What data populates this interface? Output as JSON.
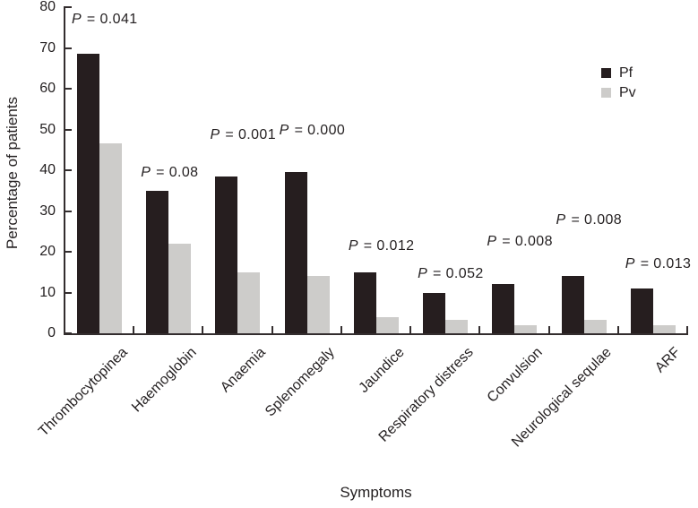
{
  "figure_name": "symptoms-bar-chart",
  "p_prefix": "P",
  "p_equals": " = ",
  "legend": {
    "items": [
      {
        "label": "Pf",
        "color": "#261e1f"
      },
      {
        "label": "Pv",
        "color": "#cdccca"
      }
    ]
  },
  "chart_data": {
    "type": "bar",
    "title": "",
    "xlabel": "Symptoms",
    "ylabel": "Percentage of patients",
    "ylim": [
      0,
      80
    ],
    "y_ticks": [
      0,
      10,
      20,
      30,
      40,
      50,
      60,
      70,
      80
    ],
    "grid": false,
    "legend_position": "upper right",
    "categories": [
      "Thrombocytopinea",
      "Haemoglobin",
      "Anaemia",
      "Splenomegaly",
      "Jaundice",
      "Respiratory distress",
      "Convulsion",
      "Neurological sequlae",
      "ARF"
    ],
    "series": [
      {
        "name": "Pf",
        "color": "#261e1f",
        "values": [
          68.5,
          35,
          38.5,
          39.5,
          15,
          10,
          12,
          14,
          11
        ]
      },
      {
        "name": "Pv",
        "color": "#cdccca",
        "values": [
          46.5,
          22,
          15,
          14,
          4,
          3.3,
          2,
          3.3,
          2
        ]
      }
    ],
    "annotations": [
      {
        "p": "0.041",
        "label_y": 79.0
      },
      {
        "p": "0.08",
        "label_y": 41.3
      },
      {
        "p": "0.001",
        "label_y": 50.5
      },
      {
        "p": "0.000",
        "label_y": 51.6
      },
      {
        "p": "0.012",
        "label_y": 23.3
      },
      {
        "p": "0.052",
        "label_y": 16.5
      },
      {
        "p": "0.008",
        "label_y": 24.4
      },
      {
        "p": "0.008",
        "label_y": 29.7
      },
      {
        "p": "0.013",
        "label_y": 18.9
      }
    ]
  }
}
